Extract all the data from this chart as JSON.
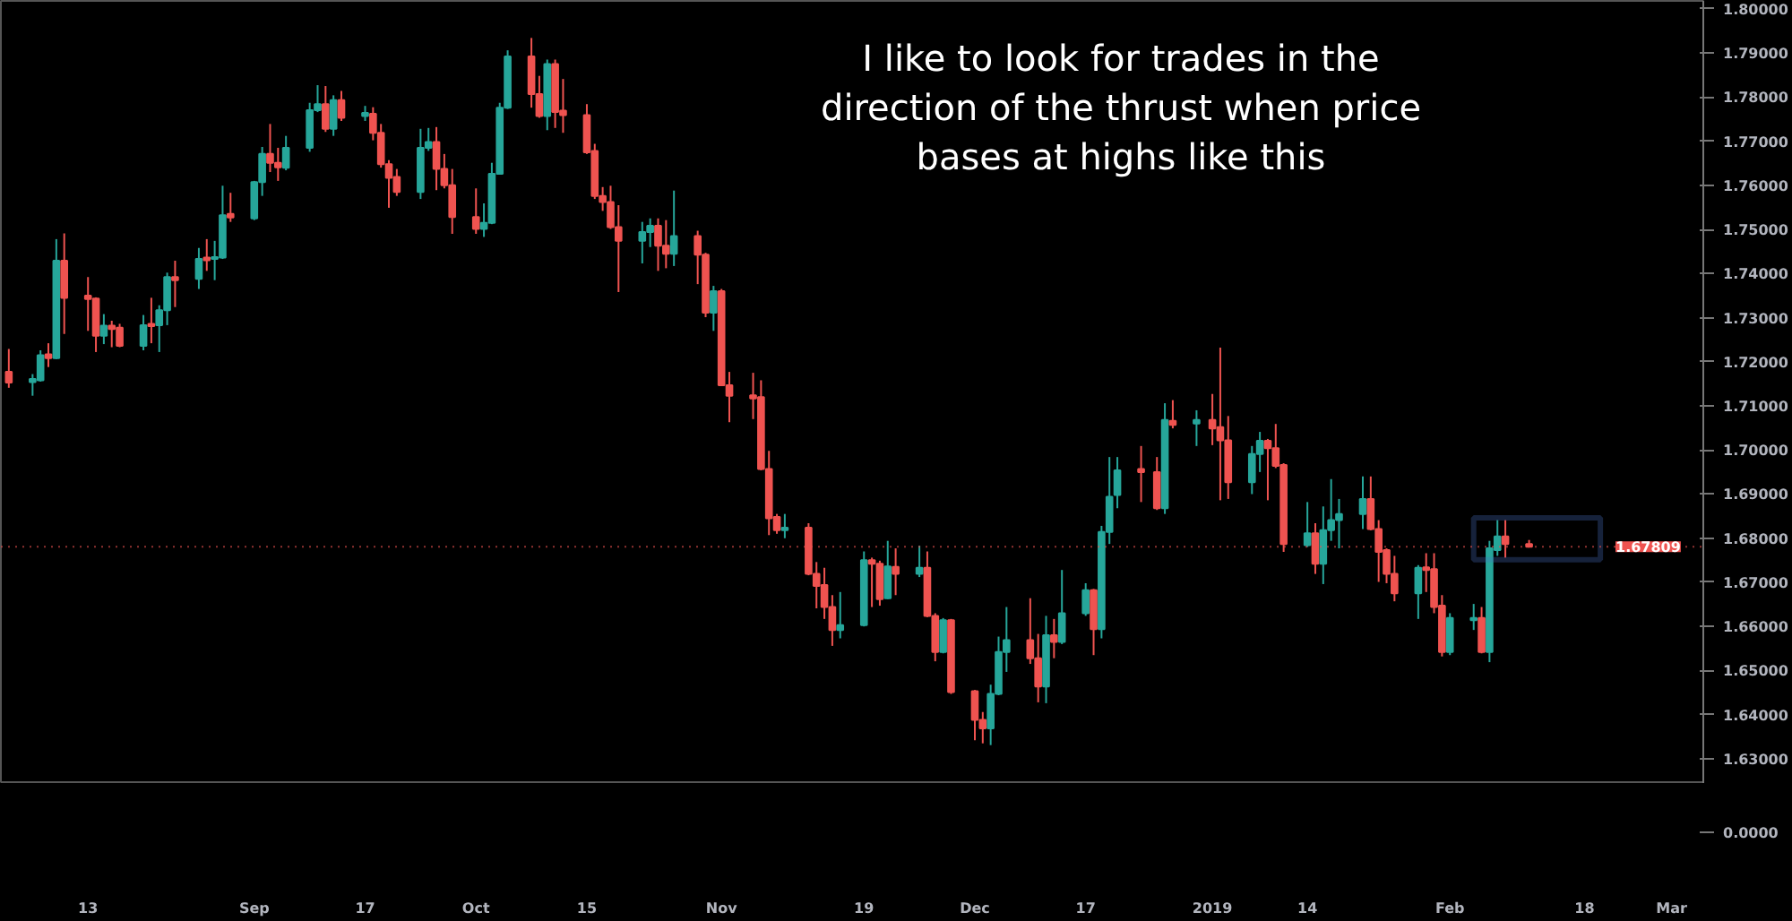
{
  "chart_data": [
    {
      "type": "candlestick",
      "annotations": [
        "I like to look for trades in the\ndirection of the thrust when price\nbases at highs like this"
      ],
      "colors": [
        "#ef5350",
        "#26a69a",
        "#26a69a",
        "#ef5350",
        "#26a69a",
        "#ef5350",
        "#ef5350",
        "#ef5350",
        "#26a69a",
        "#ef5350",
        "#ef5350",
        "#26a69a",
        "#ef5350",
        "#26a69a",
        "#26a69a",
        "#ef5350",
        "#26a69a",
        "#ef5350",
        "#26a69a",
        "#26a69a",
        "#ef5350",
        "#26a69a",
        "#26a69a",
        "#ef5350",
        "#ef5350",
        "#26a69a",
        "#26a69a",
        "#26a69a",
        "#ef5350",
        "#26a69a",
        "#ef5350",
        "#26a69a",
        "#ef5350",
        "#ef5350",
        "#ef5350",
        "#ef5350",
        "#26a69a",
        "#26a69a",
        "#ef5350",
        "#ef5350",
        "#ef5350",
        "#ef5350",
        "#26a69a",
        "#26a69a",
        "#26a69a",
        "#26a69a",
        "#ef5350",
        "#ef5350",
        "#26a69a",
        "#ef5350",
        "#ef5350",
        "#ef5350",
        "#ef5350",
        "#ef5350",
        "#ef5350",
        "#ef5350",
        "#26a69a",
        "#26a69a",
        "#ef5350",
        "#ef5350",
        "#26a69a",
        "#ef5350",
        "#ef5350",
        "#26a69a",
        "#ef5350",
        "#ef5350",
        "#ef5350",
        "#ef5350",
        "#ef5350",
        "#ef5350",
        "#26a69a",
        "#ef5350",
        "#ef5350",
        "#ef5350",
        "#ef5350",
        "#26a69a",
        "#26a69a",
        "#ef5350",
        "#ef5350",
        "#26a69a",
        "#ef5350",
        "#26a69a",
        "#ef5350",
        "#ef5350",
        "#26a69a",
        "#ef5350",
        "#ef5350",
        "#ef5350",
        "#26a69a",
        "#26a69a",
        "#26a69a",
        "#ef5350",
        "#ef5350",
        "#26a69a",
        "#ef5350",
        "#26a69a",
        "#26a69a",
        "#ef5350",
        "#26a69a",
        "#26a69a",
        "#26a69a",
        "#ef5350",
        "#ef5350",
        "#26a69a",
        "#ef5350",
        "#26a69a",
        "#ef5350",
        "#ef5350",
        "#ef5350",
        "#26a69a",
        "#26a69a",
        "#ef5350",
        "#ef5350",
        "#ef5350",
        "#26a69a",
        "#ef5350",
        "#26a69a",
        "#26a69a",
        "#26a69a",
        "#26a69a",
        "#ef5350",
        "#ef5350",
        "#ef5350",
        "#ef5350",
        "#26a69a",
        "#ef5350",
        "#ef5350",
        "#ef5350",
        "#26a69a",
        "#26a69a",
        "#ef5350",
        "#26a69a",
        "#26a69a",
        "#ef5350",
        "#ef5350"
      ],
      "x": [
        "2018-08-03",
        "2018-08-06",
        "2018-08-07",
        "2018-08-08",
        "2018-08-09",
        "2018-08-10",
        "2018-08-13",
        "2018-08-14",
        "2018-08-15",
        "2018-08-16",
        "2018-08-17",
        "2018-08-20",
        "2018-08-21",
        "2018-08-22",
        "2018-08-23",
        "2018-08-24",
        "2018-08-27",
        "2018-08-28",
        "2018-08-29",
        "2018-08-30",
        "2018-08-31",
        "2018-09-03",
        "2018-09-04",
        "2018-09-05",
        "2018-09-06",
        "2018-09-07",
        "2018-09-10",
        "2018-09-11",
        "2018-09-12",
        "2018-09-13",
        "2018-09-14",
        "2018-09-17",
        "2018-09-18",
        "2018-09-19",
        "2018-09-20",
        "2018-09-21",
        "2018-09-24",
        "2018-09-25",
        "2018-09-26",
        "2018-09-27",
        "2018-09-28",
        "2018-10-01",
        "2018-10-02",
        "2018-10-03",
        "2018-10-04",
        "2018-10-05",
        "2018-10-08",
        "2018-10-09",
        "2018-10-10",
        "2018-10-11",
        "2018-10-12",
        "2018-10-15",
        "2018-10-16",
        "2018-10-17",
        "2018-10-18",
        "2018-10-19",
        "2018-10-22",
        "2018-10-23",
        "2018-10-24",
        "2018-10-25",
        "2018-10-26",
        "2018-10-29",
        "2018-10-30",
        "2018-10-31",
        "2018-11-01",
        "2018-11-02",
        "2018-11-05",
        "2018-11-06",
        "2018-11-07",
        "2018-11-08",
        "2018-11-09",
        "2018-11-12",
        "2018-11-13",
        "2018-11-14",
        "2018-11-15",
        "2018-11-16",
        "2018-11-19",
        "2018-11-20",
        "2018-11-21",
        "2018-11-22",
        "2018-11-23",
        "2018-11-26",
        "2018-11-27",
        "2018-11-28",
        "2018-11-29",
        "2018-11-30",
        "2018-12-03",
        "2018-12-04",
        "2018-12-05",
        "2018-12-06",
        "2018-12-07",
        "2018-12-10",
        "2018-12-11",
        "2018-12-12",
        "2018-12-13",
        "2018-12-14",
        "2018-12-17",
        "2018-12-18",
        "2018-12-19",
        "2018-12-20",
        "2018-12-21",
        "2018-12-24",
        "2018-12-26",
        "2018-12-27",
        "2018-12-28",
        "2018-12-31",
        "2019-01-02",
        "2019-01-03",
        "2019-01-04",
        "2019-01-07",
        "2019-01-08",
        "2019-01-09",
        "2019-01-10",
        "2019-01-11",
        "2019-01-14",
        "2019-01-15",
        "2019-01-16",
        "2019-01-17",
        "2019-01-18",
        "2019-01-21",
        "2019-01-22",
        "2019-01-23",
        "2019-01-24",
        "2019-01-25",
        "2019-01-28",
        "2019-01-29",
        "2019-01-30",
        "2019-01-31",
        "2019-02-01",
        "2019-02-04",
        "2019-02-05",
        "2019-02-06",
        "2019-02-07",
        "2019-02-08",
        "2019-02-11"
      ],
      "ohlc": [
        [
          1.7177,
          1.7229,
          1.7141,
          1.7153
        ],
        [
          1.7154,
          1.7172,
          1.7123,
          1.7161
        ],
        [
          1.7158,
          1.7226,
          1.7155,
          1.7215
        ],
        [
          1.7217,
          1.7242,
          1.7188,
          1.7208
        ],
        [
          1.7208,
          1.7478,
          1.7206,
          1.7429
        ],
        [
          1.7429,
          1.7491,
          1.7263,
          1.7345
        ],
        [
          1.735,
          1.7392,
          1.727,
          1.7342
        ],
        [
          1.7343,
          1.7346,
          1.7222,
          1.7259
        ],
        [
          1.7259,
          1.7308,
          1.724,
          1.7282
        ],
        [
          1.7282,
          1.7293,
          1.7233,
          1.7274
        ],
        [
          1.7277,
          1.7286,
          1.7233,
          1.7236
        ],
        [
          1.7236,
          1.7306,
          1.7226,
          1.7283
        ],
        [
          1.7286,
          1.7345,
          1.7242,
          1.7281
        ],
        [
          1.7283,
          1.7328,
          1.7222,
          1.7317
        ],
        [
          1.7317,
          1.7402,
          1.7283,
          1.7392
        ],
        [
          1.7392,
          1.7429,
          1.7324,
          1.7385
        ],
        [
          1.7388,
          1.7458,
          1.7365,
          1.7433
        ],
        [
          1.7436,
          1.7478,
          1.7406,
          1.743
        ],
        [
          1.7433,
          1.7474,
          1.7385,
          1.7437
        ],
        [
          1.7436,
          1.7599,
          1.7433,
          1.7532
        ],
        [
          1.7535,
          1.7583,
          1.7517,
          1.7527
        ],
        [
          1.7525,
          1.761,
          1.7521,
          1.7607
        ],
        [
          1.7607,
          1.7687,
          1.7576,
          1.7671
        ],
        [
          1.7671,
          1.7739,
          1.763,
          1.7651
        ],
        [
          1.7651,
          1.7685,
          1.761,
          1.7641
        ],
        [
          1.764,
          1.7712,
          1.7634,
          1.7685
        ],
        [
          1.7685,
          1.7787,
          1.7676,
          1.777
        ],
        [
          1.777,
          1.7827,
          1.7766,
          1.7784
        ],
        [
          1.7784,
          1.7825,
          1.7721,
          1.7728
        ],
        [
          1.7728,
          1.7804,
          1.7712,
          1.7793
        ],
        [
          1.7793,
          1.7814,
          1.7746,
          1.7753
        ],
        [
          1.7757,
          1.778,
          1.7746,
          1.7764
        ],
        [
          1.7762,
          1.7777,
          1.7702,
          1.7719
        ],
        [
          1.7719,
          1.7739,
          1.764,
          1.7648
        ],
        [
          1.7648,
          1.7657,
          1.7549,
          1.7617
        ],
        [
          1.7619,
          1.7637,
          1.7576,
          1.7585
        ],
        [
          1.7585,
          1.7728,
          1.7569,
          1.7685
        ],
        [
          1.7685,
          1.773,
          1.7678,
          1.7698
        ],
        [
          1.7698,
          1.7732,
          1.7589,
          1.7637
        ],
        [
          1.7637,
          1.7671,
          1.7593,
          1.76
        ],
        [
          1.76,
          1.7637,
          1.749,
          1.7528
        ],
        [
          1.7528,
          1.7593,
          1.749,
          1.7501
        ],
        [
          1.7501,
          1.7559,
          1.7483,
          1.7515
        ],
        [
          1.7515,
          1.7651,
          1.7512,
          1.7626
        ],
        [
          1.7626,
          1.7787,
          1.7624,
          1.7776
        ],
        [
          1.7776,
          1.7906,
          1.7773,
          1.7892
        ],
        [
          1.7892,
          1.7934,
          1.7776,
          1.7807
        ],
        [
          1.7807,
          1.7848,
          1.7753,
          1.7757
        ],
        [
          1.7757,
          1.7885,
          1.7725,
          1.7875
        ],
        [
          1.7875,
          1.7885,
          1.773,
          1.7766
        ],
        [
          1.7769,
          1.7841,
          1.7719,
          1.7759
        ],
        [
          1.7759,
          1.7784,
          1.7671,
          1.7675
        ],
        [
          1.7678,
          1.7694,
          1.7569,
          1.7576
        ],
        [
          1.7576,
          1.7596,
          1.7542,
          1.7562
        ],
        [
          1.7562,
          1.7599,
          1.7501,
          1.7505
        ],
        [
          1.7505,
          1.7555,
          1.7358,
          1.7474
        ],
        [
          1.7474,
          1.7517,
          1.7423,
          1.7494
        ],
        [
          1.7494,
          1.7525,
          1.746,
          1.7508
        ],
        [
          1.7508,
          1.7525,
          1.7406,
          1.7463
        ],
        [
          1.7463,
          1.7521,
          1.7412,
          1.7445
        ],
        [
          1.7445,
          1.7588,
          1.7417,
          1.7485
        ],
        [
          1.7485,
          1.7497,
          1.7376,
          1.7443
        ],
        [
          1.7443,
          1.7447,
          1.7301,
          1.7311
        ],
        [
          1.7311,
          1.7372,
          1.727,
          1.736
        ],
        [
          1.736,
          1.7365,
          1.7145,
          1.7147
        ],
        [
          1.7147,
          1.7177,
          1.7063,
          1.7123
        ],
        [
          1.7124,
          1.7175,
          1.707,
          1.7117
        ],
        [
          1.712,
          1.7158,
          1.6954,
          1.6957
        ],
        [
          1.6957,
          1.6998,
          1.6807,
          1.6845
        ],
        [
          1.6848,
          1.6855,
          1.681,
          1.6818
        ],
        [
          1.6818,
          1.6855,
          1.68,
          1.6824
        ],
        [
          1.6824,
          1.6834,
          1.6716,
          1.6719
        ],
        [
          1.6719,
          1.6746,
          1.6641,
          1.6692
        ],
        [
          1.6694,
          1.6733,
          1.6617,
          1.6644
        ],
        [
          1.6644,
          1.6671,
          1.6556,
          1.6592
        ],
        [
          1.6592,
          1.6678,
          1.6573,
          1.6603
        ],
        [
          1.6603,
          1.677,
          1.66,
          1.675
        ],
        [
          1.675,
          1.6756,
          1.6644,
          1.6742
        ],
        [
          1.6742,
          1.6749,
          1.6647,
          1.6662
        ],
        [
          1.6664,
          1.6794,
          1.6662,
          1.6736
        ],
        [
          1.6735,
          1.6777,
          1.6671,
          1.6719
        ],
        [
          1.6719,
          1.6783,
          1.6712,
          1.6733
        ],
        [
          1.6733,
          1.677,
          1.6621,
          1.6624
        ],
        [
          1.6624,
          1.663,
          1.6521,
          1.6542
        ],
        [
          1.6542,
          1.6619,
          1.6539,
          1.6614
        ],
        [
          1.6614,
          1.6617,
          1.6447,
          1.6451
        ],
        [
          1.6453,
          1.6456,
          1.6342,
          1.6388
        ],
        [
          1.6388,
          1.6406,
          1.6335,
          1.6369
        ],
        [
          1.6369,
          1.6468,
          1.6331,
          1.6447
        ],
        [
          1.6447,
          1.6577,
          1.6444,
          1.6542
        ],
        [
          1.6542,
          1.6644,
          1.6497,
          1.6569
        ],
        [
          1.6569,
          1.6664,
          1.6515,
          1.6528
        ],
        [
          1.6528,
          1.6583,
          1.6428,
          1.6464
        ],
        [
          1.6464,
          1.6624,
          1.6426,
          1.658
        ],
        [
          1.658,
          1.6617,
          1.6528,
          1.6565
        ],
        [
          1.6565,
          1.6728,
          1.656,
          1.663
        ],
        [
          1.663,
          1.6698,
          1.6624,
          1.6682
        ],
        [
          1.6682,
          1.6685,
          1.6535,
          1.6594
        ],
        [
          1.6594,
          1.6828,
          1.6573,
          1.6814
        ],
        [
          1.6814,
          1.6984,
          1.6787,
          1.6894
        ],
        [
          1.6898,
          1.6984,
          1.6868,
          1.6954
        ],
        [
          1.6957,
          1.7009,
          1.6882,
          1.695
        ],
        [
          1.695,
          1.6984,
          1.6864,
          1.6868
        ],
        [
          1.6868,
          1.7106,
          1.6855,
          1.7068
        ],
        [
          1.7066,
          1.7113,
          1.7049,
          1.7057
        ],
        [
          1.706,
          1.709,
          1.7009,
          1.7068
        ],
        [
          1.7068,
          1.7127,
          1.7011,
          1.7049
        ],
        [
          1.7052,
          1.7232,
          1.6886,
          1.7022
        ],
        [
          1.7022,
          1.7077,
          1.6889,
          1.6927
        ],
        [
          1.6927,
          1.7009,
          1.69,
          1.6991
        ],
        [
          1.6991,
          1.7041,
          1.695,
          1.7021
        ],
        [
          1.7021,
          1.7025,
          1.6886,
          1.7004
        ],
        [
          1.7004,
          1.7059,
          1.6959,
          1.6964
        ],
        [
          1.6966,
          1.697,
          1.6769,
          1.6787
        ],
        [
          1.6784,
          1.6882,
          1.678,
          1.6811
        ],
        [
          1.6811,
          1.6834,
          1.6719,
          1.6742
        ],
        [
          1.6742,
          1.6872,
          1.6696,
          1.6818
        ],
        [
          1.6818,
          1.6934,
          1.6794,
          1.6841
        ],
        [
          1.6841,
          1.6889,
          1.6777,
          1.6855
        ],
        [
          1.6855,
          1.694,
          1.6821,
          1.6889
        ],
        [
          1.6889,
          1.694,
          1.6818,
          1.6821
        ],
        [
          1.6821,
          1.6841,
          1.6701,
          1.6769
        ],
        [
          1.6773,
          1.6777,
          1.6698,
          1.6719
        ],
        [
          1.6719,
          1.676,
          1.6657,
          1.6675
        ],
        [
          1.6675,
          1.6739,
          1.6617,
          1.6733
        ],
        [
          1.6734,
          1.6766,
          1.6678,
          1.6728
        ],
        [
          1.673,
          1.6766,
          1.663,
          1.6644
        ],
        [
          1.6647,
          1.6671,
          1.6532,
          1.6542
        ],
        [
          1.6542,
          1.663,
          1.6535,
          1.6619
        ],
        [
          1.6614,
          1.6651,
          1.6592,
          1.6619
        ],
        [
          1.6619,
          1.6644,
          1.6539,
          1.6542
        ],
        [
          1.6542,
          1.6794,
          1.6519,
          1.6777
        ],
        [
          1.6773,
          1.6841,
          1.676,
          1.6804
        ],
        [
          1.6804,
          1.6841,
          1.6756,
          1.6787
        ],
        [
          1.6787,
          1.6796,
          1.678,
          1.67809
        ]
      ],
      "xlim": [
        "2018-08-02",
        "2019-03-05"
      ],
      "xticks": [
        {
          "value": "2018-08-13",
          "label": "13"
        },
        {
          "value": "2018-09-03",
          "label": "Sep"
        },
        {
          "value": "2018-09-17",
          "label": "17"
        },
        {
          "value": "2018-10-01",
          "label": "Oct"
        },
        {
          "value": "2018-10-15",
          "label": "15"
        },
        {
          "value": "2018-11-01",
          "label": "Nov"
        },
        {
          "value": "2018-11-19",
          "label": "19"
        },
        {
          "value": "2018-12-03",
          "label": "Dec"
        },
        {
          "value": "2018-12-17",
          "label": "17"
        },
        {
          "value": "2019-01-02",
          "label": "2019"
        },
        {
          "value": "2019-01-14",
          "label": "14"
        },
        {
          "value": "2019-02-01",
          "label": "Feb"
        },
        {
          "value": "2019-02-18",
          "label": "18"
        },
        {
          "value": "2019-03-01",
          "label": "Mar"
        }
      ],
      "ylim": [
        1.6243,
        1.8018
      ],
      "yticks": [
        {
          "value": 1.63,
          "label": "1.63000"
        },
        {
          "value": 1.64,
          "label": "1.64000"
        },
        {
          "value": 1.65,
          "label": "1.65000"
        },
        {
          "value": 1.66,
          "label": "1.66000"
        },
        {
          "value": 1.67,
          "label": "1.67000"
        },
        {
          "value": 1.68,
          "label": "1.68000"
        },
        {
          "value": 1.69,
          "label": "1.69000"
        },
        {
          "value": 1.7,
          "label": "1.70000"
        },
        {
          "value": 1.71,
          "label": "1.71000"
        },
        {
          "value": 1.72,
          "label": "1.72000"
        },
        {
          "value": 1.73,
          "label": "1.73000"
        },
        {
          "value": 1.74,
          "label": "1.74000"
        },
        {
          "value": 1.75,
          "label": "1.75000"
        },
        {
          "value": 1.76,
          "label": "1.76000"
        },
        {
          "value": 1.77,
          "label": "1.77000"
        },
        {
          "value": 1.78,
          "label": "1.78000"
        },
        {
          "value": 1.79,
          "label": "1.79000"
        },
        {
          "value": 1.8,
          "label": "1.80000"
        }
      ],
      "ref_lines": [
        {
          "axis": "y",
          "value": 1.67809,
          "label": "1.67809",
          "color": "#ef5350"
        }
      ],
      "grid": false
    },
    {
      "type": "other",
      "annotations": [
        "0.0000"
      ]
    }
  ]
}
